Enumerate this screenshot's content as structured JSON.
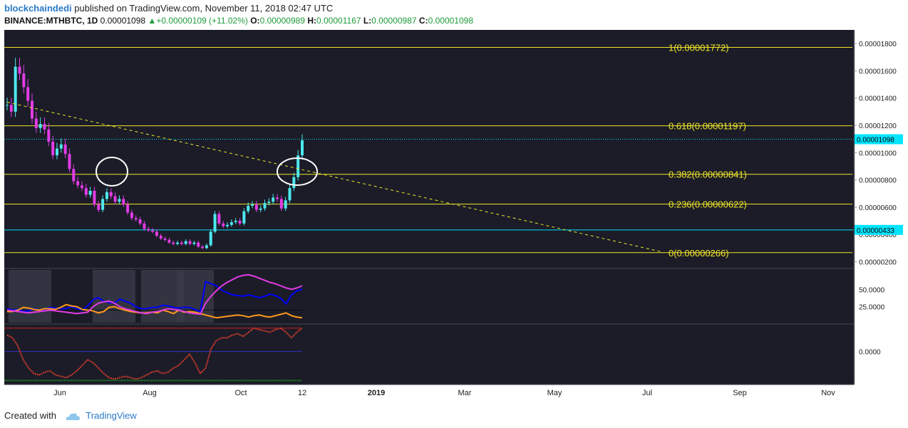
{
  "header": {
    "author": "blockchaindedi",
    "published": "published on TradingView.com, November 11, 2018 02:47 UTC",
    "symbol": "BINANCE:MTHBTC, 1D",
    "last": "0.00001098",
    "change": "+0.00000109 (+11.02%)",
    "o_label": "O:",
    "o": "0.00000989",
    "h_label": "H:",
    "h": "0.00001167",
    "l_label": "L:",
    "l": "0.00000987",
    "c_label": "C:",
    "c": "0.00001098",
    "up_color": "#1f9b3a"
  },
  "footer": {
    "created_with": "Created with",
    "brand": "TradingView"
  },
  "chart_data": [
    {
      "type": "line",
      "panel": "price",
      "background": "#1b1c28",
      "y_ticks": [
        "0.00001800",
        "0.00001600",
        "0.00001400",
        "0.00001200",
        "0.00001000",
        "0.00000800",
        "0.00000600",
        "0.00000400",
        "0.00000200"
      ],
      "y_tick_values": [
        1.8e-05,
        1.6e-05,
        1.4e-05,
        1.2e-05,
        1e-05,
        8e-06,
        6e-06,
        4e-06,
        2e-06
      ],
      "ylim": [
        1.5e-06,
        1.9e-05
      ],
      "x_ticks": [
        "Jun",
        "Aug",
        "Oct",
        "12",
        "2019",
        "Mar",
        "May",
        "Jul",
        "Sep",
        "Nov"
      ],
      "fib_levels": [
        {
          "label": "1(0.00001772)",
          "value": 1.772e-05
        },
        {
          "label": "0.618(0.00001197)",
          "value": 1.197e-05
        },
        {
          "label": "0.382(0.00000841)",
          "value": 8.41e-06
        },
        {
          "label": "0.236(0.00000622)",
          "value": 6.22e-06
        },
        {
          "label": "0(0.00000266)",
          "value": 2.66e-06
        }
      ],
      "fib_color": "#f0e628",
      "price_label": "0.00001098",
      "price_value": 1.098e-05,
      "level_label": "0.00000433",
      "level_value": 4.33e-06,
      "label_color": "#00e5ff",
      "up_color": "#4de8ef",
      "down_color": "#e23ce6",
      "series": [
        {
          "values": [
            1.35e-05,
            1.3e-05,
            1.63e-05,
            1.58e-05,
            1.48e-05,
            1.38e-05,
            1.25e-05,
            1.18e-05,
            1.21e-05,
            1.17e-05,
            1.08e-05,
            9.8e-06,
            1.03e-05,
            1.06e-05,
            9.9e-06,
            8.8e-06,
            7.9e-06,
            7.6e-06,
            7.4e-06,
            6.9e-06,
            7.2e-06,
            6.2e-06,
            5.8e-06,
            6.6e-06,
            7.1e-06,
            6.8e-06,
            6.4e-06,
            6.6e-06,
            6.2e-06,
            5.6e-06,
            5.2e-06,
            5.1e-06,
            4.8e-06,
            4.4e-06,
            4.3e-06,
            4.2e-06,
            3.9e-06,
            3.7e-06,
            3.6e-06,
            3.4e-06,
            3.3e-06,
            3.4e-06,
            3.3e-06,
            3.5e-06,
            3.3e-06,
            3.4e-06,
            3.1e-06,
            3e-06,
            3.2e-06,
            4.2e-06,
            5.5e-06,
            4.8e-06,
            4.6e-06,
            4.7e-06,
            4.9e-06,
            5e-06,
            4.8e-06,
            5.7e-06,
            6.1e-06,
            6.2e-06,
            5.8e-06,
            5.9e-06,
            6.3e-06,
            6.4e-06,
            6.7e-06,
            6.6e-06,
            5.9e-06,
            6.5e-06,
            7.4e-06,
            8.2e-06,
            9.8e-06,
            1.09e-05
          ]
        }
      ],
      "trendline": {
        "x": [
          0,
          88
        ],
        "y": [
          1.37e-05,
          2.7e-06
        ]
      }
    },
    {
      "type": "line",
      "panel": "indicator-1",
      "y_ticks": [
        "50.0000",
        "25.0000"
      ],
      "y_tick_values": [
        50,
        25
      ],
      "ylim": [
        0,
        80
      ],
      "series": [
        {
          "name": "",
          "color": "#0000ff",
          "values": [
            22,
            20,
            21,
            18,
            19,
            22,
            20,
            21,
            24,
            23,
            22,
            22,
            25,
            22,
            20,
            26,
            35,
            38,
            33,
            31,
            30,
            36,
            33,
            30,
            25,
            22,
            22,
            24,
            24,
            27,
            26,
            24,
            23,
            24,
            24,
            21,
            18,
            61,
            58,
            55,
            49,
            45,
            42,
            41,
            40,
            42,
            40,
            38,
            40,
            43,
            41,
            37,
            29,
            42,
            48,
            50
          ]
        },
        {
          "name": "",
          "color": "#ff9a1a",
          "values": [
            18,
            18,
            20,
            24,
            23,
            21,
            20,
            22,
            22,
            21,
            24,
            28,
            26,
            25,
            21,
            20,
            19,
            16,
            18,
            24,
            25,
            22,
            20,
            18,
            17,
            16,
            16,
            17,
            16,
            20,
            18,
            15,
            20,
            17,
            18,
            17,
            15,
            13,
            11,
            9,
            10,
            11,
            12,
            13,
            12,
            10,
            12,
            13,
            11,
            10,
            12,
            14,
            16,
            12,
            10,
            9
          ]
        },
        {
          "name": "",
          "color": "#e23ce6",
          "values": [
            20,
            19,
            18,
            17,
            16,
            17,
            18,
            19,
            20,
            19,
            18,
            17,
            16,
            15,
            16,
            17,
            25,
            30,
            32,
            33,
            30,
            25,
            22,
            20,
            18,
            16,
            15,
            17,
            18,
            20,
            22,
            21,
            20,
            18,
            16,
            15,
            14,
            30,
            40,
            48,
            55,
            60,
            64,
            68,
            70,
            71,
            69,
            66,
            63,
            60,
            58,
            55,
            52,
            50,
            52,
            55
          ]
        }
      ]
    },
    {
      "type": "line",
      "panel": "indicator-2",
      "y_ticks": [
        "0.0000"
      ],
      "y_tick_values": [
        0
      ],
      "ylim": [
        -1.2,
        1
      ],
      "series": [
        {
          "name": "",
          "color": "#d33b2a",
          "values": [
            0.6,
            0.5,
            0.2,
            -0.3,
            -0.6,
            -0.8,
            -0.85,
            -0.75,
            -0.7,
            -0.85,
            -0.9,
            -0.95,
            -0.85,
            -0.7,
            -0.5,
            -0.3,
            -0.4,
            -0.6,
            -0.8,
            -0.95,
            -1.0,
            -0.95,
            -0.9,
            -0.95,
            -1.0,
            -0.95,
            -0.85,
            -0.75,
            -0.7,
            -0.8,
            -0.75,
            -0.6,
            -0.5,
            -0.3,
            -0.1,
            -0.4,
            -0.8,
            -0.6,
            0.1,
            0.4,
            0.5,
            0.5,
            0.6,
            0.65,
            0.55,
            0.7,
            0.85,
            0.8,
            0.75,
            0.7,
            0.8,
            0.85,
            0.7,
            0.5,
            0.7,
            0.85
          ]
        }
      ]
    }
  ]
}
